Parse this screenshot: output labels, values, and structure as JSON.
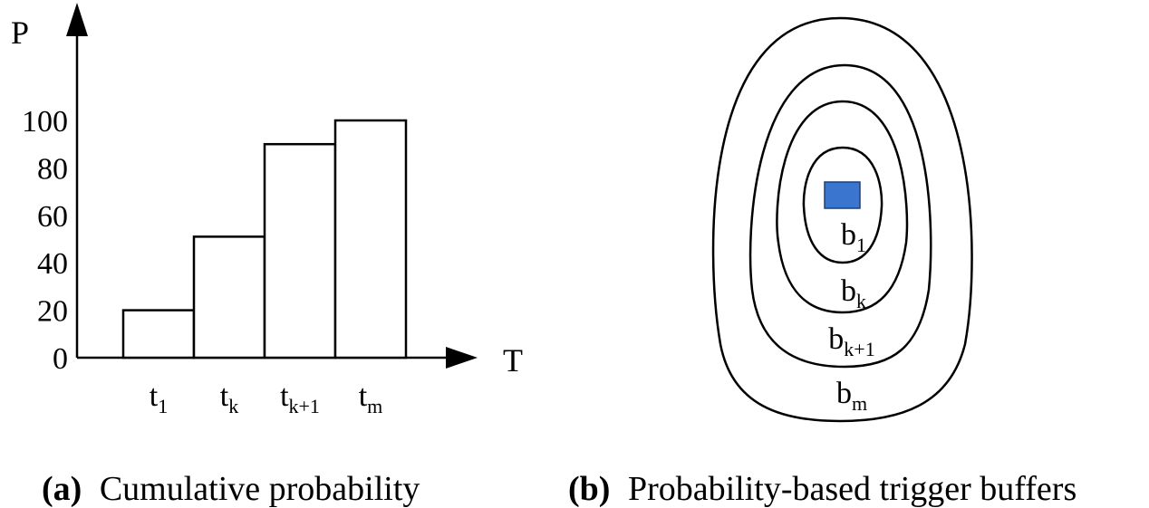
{
  "panel_a": {
    "caption_letter": "(a)",
    "caption_text": "Cumulative probability",
    "chart_data": {
      "type": "bar",
      "categories": [
        {
          "main": "t",
          "sub": "1"
        },
        {
          "main": "t",
          "sub": "k"
        },
        {
          "main": "t",
          "sub": "k+1"
        },
        {
          "main": "t",
          "sub": "m"
        }
      ],
      "values": [
        20,
        51,
        90,
        100
      ],
      "ylabel": "P",
      "xlabel": "T",
      "yticks": [
        "0",
        "20",
        "40",
        "60",
        "80",
        "100"
      ],
      "ylim": [
        0,
        100
      ],
      "grid": false
    }
  },
  "panel_b": {
    "caption_letter": "(b)",
    "caption_text": "Probability-based trigger buffers",
    "marker_color": "#3a76d0",
    "buffers": [
      {
        "main": "b",
        "sub": "1"
      },
      {
        "main": "b",
        "sub": "k"
      },
      {
        "main": "b",
        "sub": "k+1"
      },
      {
        "main": "b",
        "sub": "m"
      }
    ]
  }
}
